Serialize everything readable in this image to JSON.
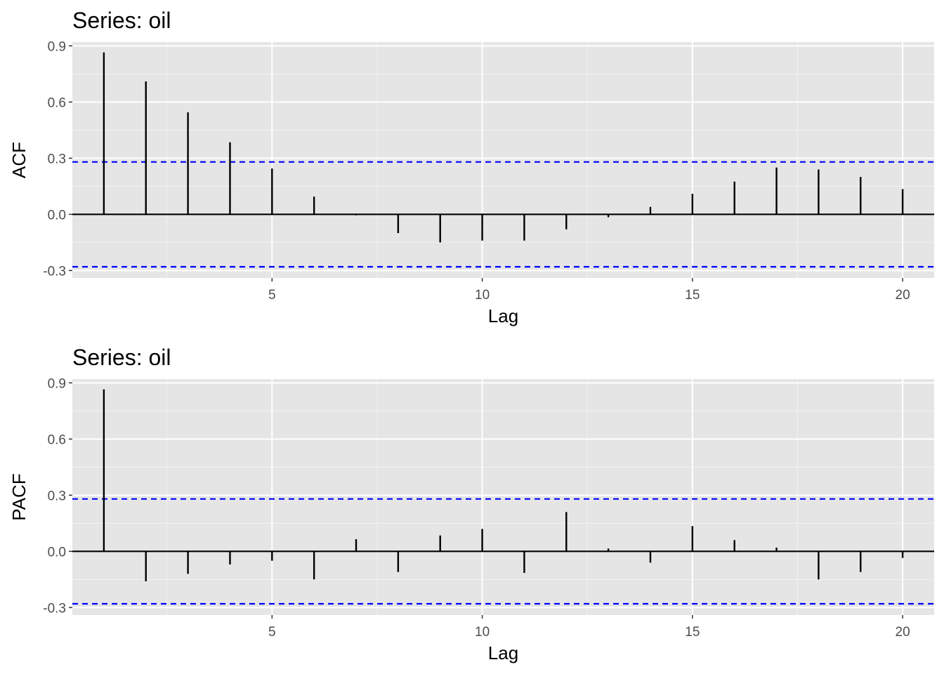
{
  "chart_data": [
    {
      "type": "bar",
      "title": "Series: oil",
      "xlabel": "Lag",
      "ylabel": "ACF",
      "xlim": [
        0.25,
        20.75
      ],
      "ylim": [
        -0.34,
        0.92
      ],
      "x_ticks": [
        5,
        10,
        15,
        20
      ],
      "x_tick_labels": [
        "5",
        "10",
        "15",
        "20"
      ],
      "y_ticks": [
        -0.3,
        0,
        0.3,
        0.6,
        0.9
      ],
      "y_tick_labels": [
        "-0.3",
        "0.0",
        "0.3",
        "0.6",
        "0.9"
      ],
      "grid": true,
      "lags": [
        1,
        2,
        3,
        4,
        5,
        6,
        7,
        8,
        9,
        10,
        11,
        12,
        13,
        14,
        15,
        16,
        17,
        18,
        19,
        20
      ],
      "values": [
        0.865,
        0.71,
        0.545,
        0.385,
        0.245,
        0.095,
        -0.005,
        -0.1,
        -0.15,
        -0.14,
        -0.14,
        -0.08,
        -0.015,
        0.04,
        0.11,
        0.175,
        0.25,
        0.24,
        0.2,
        0.135
      ],
      "confidence_limit": 0.28,
      "confidence_color": "#0000ff"
    },
    {
      "type": "bar",
      "title": "Series: oil",
      "xlabel": "Lag",
      "ylabel": "PACF",
      "xlim": [
        0.25,
        20.75
      ],
      "ylim": [
        -0.34,
        0.92
      ],
      "x_ticks": [
        5,
        10,
        15,
        20
      ],
      "x_tick_labels": [
        "5",
        "10",
        "15",
        "20"
      ],
      "y_ticks": [
        -0.3,
        0,
        0.3,
        0.6,
        0.9
      ],
      "y_tick_labels": [
        "-0.3",
        "0.0",
        "0.3",
        "0.6",
        "0.9"
      ],
      "grid": true,
      "lags": [
        1,
        2,
        3,
        4,
        5,
        6,
        7,
        8,
        9,
        10,
        11,
        12,
        13,
        14,
        15,
        16,
        17,
        18,
        19,
        20
      ],
      "values": [
        0.865,
        -0.16,
        -0.12,
        -0.07,
        -0.05,
        -0.15,
        0.065,
        -0.11,
        0.085,
        0.12,
        -0.115,
        0.21,
        0.015,
        -0.06,
        0.135,
        0.06,
        0.02,
        -0.15,
        -0.11,
        -0.035
      ],
      "confidence_limit": 0.28,
      "confidence_color": "#0000ff"
    }
  ]
}
